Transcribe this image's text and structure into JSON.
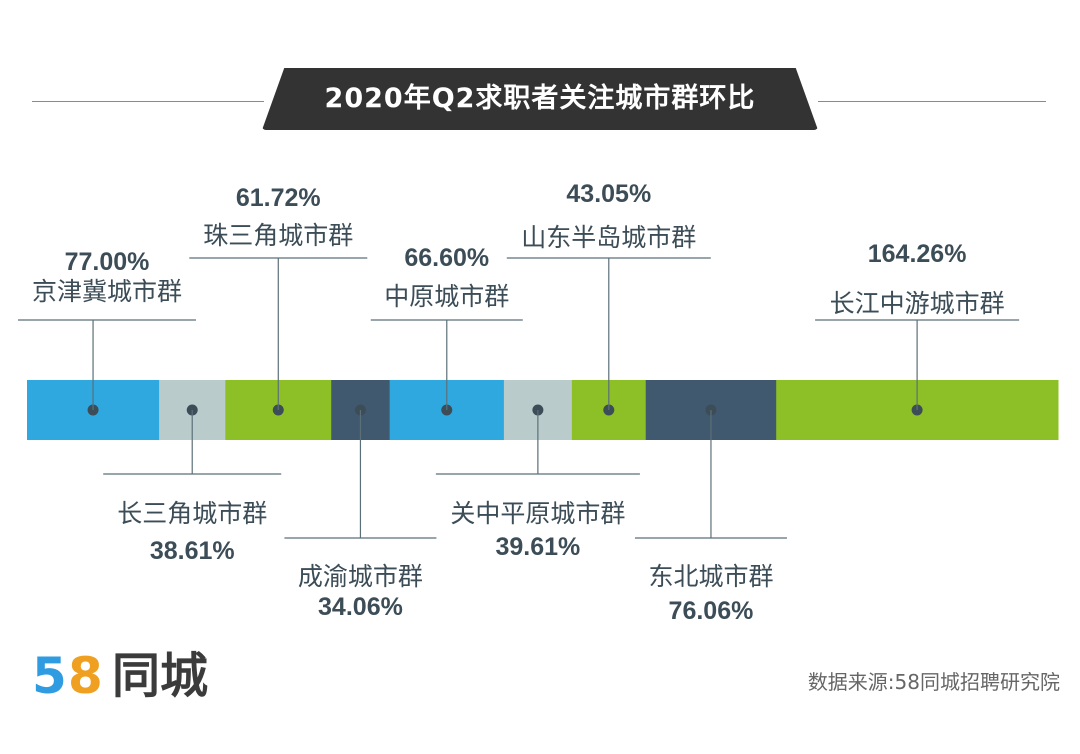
{
  "header": {
    "title": "2020年Q2求职者关注城市群环比"
  },
  "chart_data": {
    "type": "bar",
    "title": "2020年Q2求职者关注城市群环比",
    "orientation": "horizontal-stacked-single",
    "segments": [
      {
        "name": "京津冀城市群",
        "value": 77.0,
        "label": "77.00%",
        "color": "#2fa8e0",
        "label_side": "top"
      },
      {
        "name": "长三角城市群",
        "value": 38.61,
        "label": "38.61%",
        "color": "#b9cccb",
        "label_side": "bottom"
      },
      {
        "name": "珠三角城市群",
        "value": 61.72,
        "label": "61.72%",
        "color": "#8dc026",
        "label_side": "top"
      },
      {
        "name": "成渝城市群",
        "value": 34.06,
        "label": "34.06%",
        "color": "#41596e",
        "label_side": "bottom"
      },
      {
        "name": "中原城市群",
        "value": 66.6,
        "label": "66.60%",
        "color": "#2fa8e0",
        "label_side": "top"
      },
      {
        "name": "关中平原城市群",
        "value": 39.61,
        "label": "39.61%",
        "color": "#b9cccb",
        "label_side": "bottom"
      },
      {
        "name": "山东半岛城市群",
        "value": 43.05,
        "label": "43.05%",
        "color": "#8dc026",
        "label_side": "top"
      },
      {
        "name": "东北城市群",
        "value": 76.06,
        "label": "76.06%",
        "color": "#41596e",
        "label_side": "bottom"
      },
      {
        "name": "长江中游城市群",
        "value": 164.26,
        "label": "164.26%",
        "color": "#8dc026",
        "label_side": "top"
      }
    ],
    "unit": "%"
  },
  "logo": {
    "num1": "5",
    "num2": "8",
    "name": "同城",
    "color1": "#2f9be0",
    "color2": "#f0a020"
  },
  "source": "数据来源:58同城招聘研究院"
}
